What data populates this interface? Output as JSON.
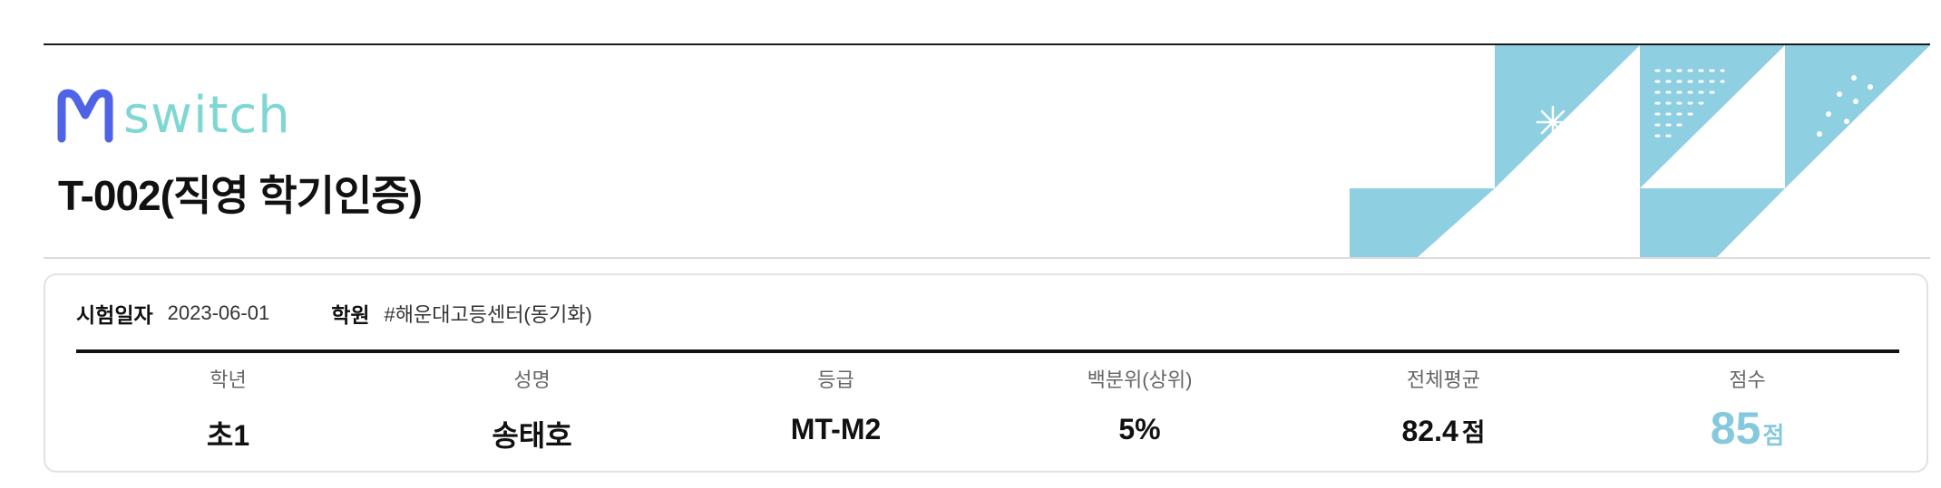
{
  "brand": {
    "logo_text": "switch",
    "colors": {
      "logo_mark": "#4f63e6",
      "logo_text": "#7fd7d4",
      "decoration": "#8ecfe2"
    }
  },
  "report": {
    "title": "T-002(직영 학기인증)"
  },
  "exam_info": {
    "date_label": "시험일자",
    "date_value": "2023-06-01",
    "academy_label": "학원",
    "academy_value": "#해운대고등센터(동기화)"
  },
  "stats": {
    "grade": {
      "label": "학년",
      "value": "초1"
    },
    "name": {
      "label": "성명",
      "value": "송태호"
    },
    "level": {
      "label": "등급",
      "value": "MT-M2"
    },
    "percentile": {
      "label": "백분위(상위)",
      "value": "5%"
    },
    "average": {
      "label": "전체평균",
      "value": "82.4",
      "unit": "점"
    },
    "score": {
      "label": "점수",
      "value": "85",
      "unit": "점"
    }
  }
}
